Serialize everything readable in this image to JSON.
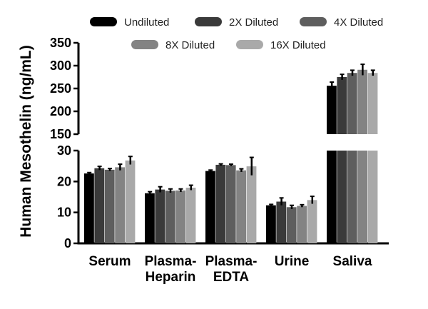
{
  "chart_data": {
    "type": "bar",
    "ylabel": "Human Mesothelin (ng/mL)",
    "categories": [
      {
        "lines": [
          "Serum"
        ]
      },
      {
        "lines": [
          "Plasma-",
          "Heparin"
        ]
      },
      {
        "lines": [
          "Plasma-",
          "EDTA"
        ]
      },
      {
        "lines": [
          "Urine"
        ]
      },
      {
        "lines": [
          "Saliva"
        ]
      }
    ],
    "y_axis": {
      "broken": true,
      "lower_range": [
        0,
        30
      ],
      "lower_ticks": [
        0,
        10,
        20,
        30
      ],
      "upper_range": [
        150,
        350
      ],
      "upper_ticks": [
        150,
        200,
        250,
        300,
        350
      ]
    },
    "legend_placement": "top",
    "grid": false,
    "series": [
      {
        "name": "Undiluted",
        "color": "#000000",
        "values": [
          22.6,
          16.2,
          23.4,
          12.3,
          256
        ],
        "errors": [
          0.3,
          0.5,
          0.3,
          0.3,
          8
        ]
      },
      {
        "name": "2X Diluted",
        "color": "#3a3a3a",
        "values": [
          24.3,
          17.4,
          25.4,
          13.5,
          275
        ],
        "errors": [
          0.6,
          0.9,
          0.3,
          1.2,
          6
        ]
      },
      {
        "name": "4X Diluted",
        "color": "#5e5e5e",
        "values": [
          23.8,
          17.0,
          25.3,
          11.7,
          284
        ],
        "errors": [
          0.4,
          0.6,
          0.3,
          0.6,
          6
        ]
      },
      {
        "name": "8X Diluted",
        "color": "#838383",
        "values": [
          24.6,
          17.1,
          23.6,
          12.1,
          291
        ],
        "errors": [
          1.0,
          0.5,
          0.5,
          0.4,
          12
        ]
      },
      {
        "name": "16X Diluted",
        "color": "#a9a9a9",
        "values": [
          26.8,
          18.0,
          24.9,
          14.0,
          284
        ],
        "errors": [
          1.3,
          0.8,
          2.9,
          1.2,
          6
        ]
      }
    ]
  }
}
